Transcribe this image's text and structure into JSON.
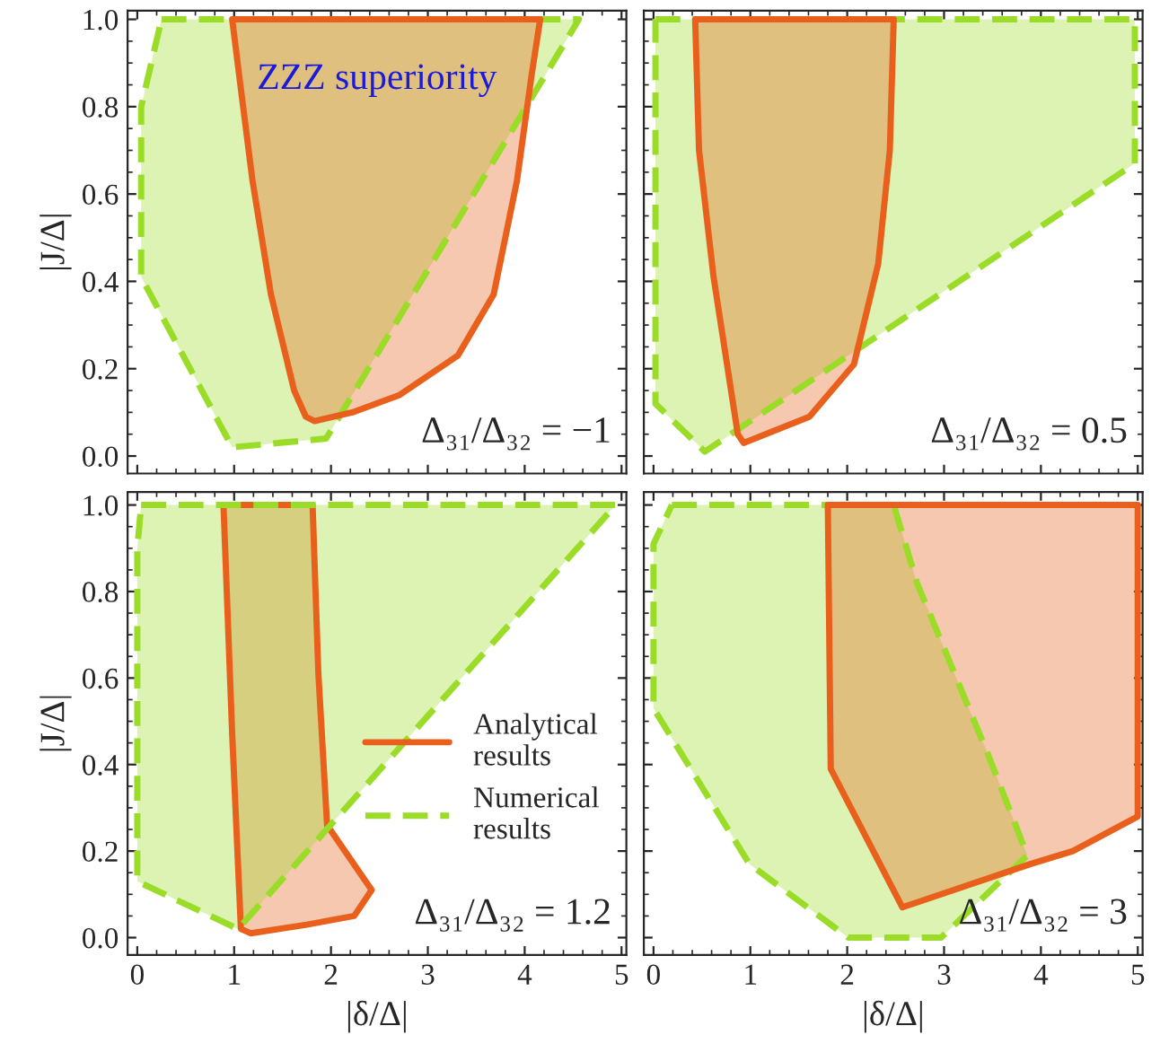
{
  "chart_data": [
    {
      "type": "area",
      "ylabel": "|J/Δ|",
      "xlim": [
        -0.1,
        5.05
      ],
      "ylim": [
        -0.04,
        1.02
      ],
      "xticks": [
        {
          "value": 0,
          "label": null
        },
        {
          "value": 1,
          "label": null
        },
        {
          "value": 2,
          "label": null
        },
        {
          "value": 3,
          "label": null
        },
        {
          "value": 4,
          "label": null
        },
        {
          "value": 5,
          "label": null
        }
      ],
      "yticks": [
        {
          "value": 0,
          "label": "0.0"
        },
        {
          "value": 0.2,
          "label": "0.2"
        },
        {
          "value": 0.4,
          "label": "0.4"
        },
        {
          "value": 0.6,
          "label": "0.6"
        },
        {
          "value": 0.8,
          "label": "0.8"
        },
        {
          "value": 1,
          "label": "1.0"
        }
      ],
      "tick_labels": "y",
      "annotations": [
        "ZZZ superiority",
        "Δ₃₁/Δ₃₂ = −1"
      ],
      "series": [
        {
          "color": "#9bdc28",
          "line_style": "dashed",
          "x": [
            0.25,
            4.56,
            1.95,
            0.98,
            0.04,
            0.04,
            0.25
          ],
          "values": [
            1.0,
            1.0,
            0.04,
            0.02,
            0.41,
            0.8,
            1.0
          ]
        },
        {
          "color": "#e8601c",
          "line_style": "solid",
          "x": [
            0.98,
            4.16,
            4.07,
            3.92,
            3.68,
            3.31,
            2.71,
            2.22,
            1.83,
            1.74,
            1.62,
            1.38,
            1.19,
            1.07,
            0.98
          ],
          "values": [
            1.0,
            1.0,
            0.87,
            0.63,
            0.37,
            0.23,
            0.14,
            0.1,
            0.08,
            0.09,
            0.15,
            0.37,
            0.63,
            0.84,
            1.0
          ]
        }
      ]
    },
    {
      "type": "area",
      "xlim": [
        -0.1,
        5.05
      ],
      "ylim": [
        -0.04,
        1.02
      ],
      "xticks": [
        {
          "value": 0,
          "label": null
        },
        {
          "value": 1,
          "label": null
        },
        {
          "value": 2,
          "label": null
        },
        {
          "value": 3,
          "label": null
        },
        {
          "value": 4,
          "label": null
        },
        {
          "value": 5,
          "label": null
        }
      ],
      "yticks": [
        {
          "value": 0,
          "label": null
        },
        {
          "value": 0.2,
          "label": null
        },
        {
          "value": 0.4,
          "label": null
        },
        {
          "value": 0.6,
          "label": null
        },
        {
          "value": 0.8,
          "label": null
        },
        {
          "value": 1,
          "label": null
        }
      ],
      "tick_labels": false,
      "annotations": [
        "Δ₃₁/Δ₃₂ = 0.5"
      ],
      "series": [
        {
          "color": "#9bdc28",
          "line_style": "dashed",
          "x": [
            0.02,
            4.97,
            4.97,
            0.53,
            0.02,
            0.02
          ],
          "values": [
            1.0,
            1.0,
            0.67,
            0.01,
            0.12,
            1.0
          ]
        },
        {
          "color": "#e8601c",
          "line_style": "solid",
          "x": [
            0.43,
            2.48,
            2.44,
            2.32,
            2.07,
            1.61,
            0.93,
            0.87,
            0.62,
            0.47,
            0.43
          ],
          "values": [
            1.0,
            1.0,
            0.7,
            0.44,
            0.21,
            0.09,
            0.03,
            0.05,
            0.41,
            0.7,
            1.0
          ]
        }
      ]
    },
    {
      "type": "area",
      "xlabel": "|δ/Δ|",
      "ylabel": "|J/Δ|",
      "xlim": [
        -0.1,
        5.05
      ],
      "ylim": [
        -0.04,
        1.03
      ],
      "xticks": [
        0,
        1,
        2,
        3,
        4,
        5
      ],
      "yticks": [
        {
          "value": 0,
          "label": "0.0"
        },
        {
          "value": 0.2,
          "label": "0.2"
        },
        {
          "value": 0.4,
          "label": "0.4"
        },
        {
          "value": 0.6,
          "label": "0.6"
        },
        {
          "value": 0.8,
          "label": "0.8"
        },
        {
          "value": 1,
          "label": "1.0"
        }
      ],
      "legend": "right",
      "annotations": [
        "Δ₃₁/Δ₃₂ = 1.2"
      ],
      "series": [
        {
          "name": "Analytical\nresults",
          "color": "#e8601c",
          "line_style": "solid",
          "x": [
            0.89,
            1.81,
            1.87,
            1.96,
            2.42,
            2.24,
            1.75,
            1.17,
            1.07,
            0.98,
            0.89
          ],
          "values": [
            1.0,
            1.0,
            0.61,
            0.26,
            0.11,
            0.05,
            0.03,
            0.01,
            0.02,
            0.47,
            1.0
          ]
        },
        {
          "name": "Numerical\nresults",
          "color": "#9bdc28",
          "line_style": "dashed",
          "x": [
            0.04,
            4.94,
            1.04,
            0.0,
            0.0,
            0.04
          ],
          "values": [
            1.0,
            1.0,
            0.02,
            0.13,
            0.9,
            1.0
          ]
        }
      ]
    },
    {
      "type": "area",
      "xlabel": "|δ/Δ|",
      "xlim": [
        -0.1,
        5.05
      ],
      "ylim": [
        -0.04,
        1.03
      ],
      "xticks": [
        0,
        1,
        2,
        3,
        4,
        5
      ],
      "yticks": [
        {
          "value": 0,
          "label": null
        },
        {
          "value": 0.2,
          "label": null
        },
        {
          "value": 0.4,
          "label": null
        },
        {
          "value": 0.6,
          "label": null
        },
        {
          "value": 0.8,
          "label": null
        },
        {
          "value": 1,
          "label": null
        }
      ],
      "tick_labels": "x",
      "annotations": [
        "Δ₃₁/Δ₃₂ = 3"
      ],
      "series": [
        {
          "color": "#9bdc28",
          "line_style": "dashed",
          "x": [
            0.19,
            2.48,
            2.72,
            3.46,
            3.86,
            2.97,
            2.01,
            0.99,
            0.0,
            0.0,
            0.19
          ],
          "values": [
            1.0,
            1.0,
            0.82,
            0.42,
            0.19,
            0.0,
            0.0,
            0.17,
            0.53,
            0.91,
            1.0
          ]
        },
        {
          "color": "#e8601c",
          "line_style": "solid",
          "x": [
            1.8,
            5.0,
            5.0,
            4.33,
            3.89,
            2.57,
            1.83,
            1.8
          ],
          "values": [
            1.0,
            1.0,
            0.28,
            0.2,
            0.17,
            0.07,
            0.39,
            1.0
          ]
        }
      ]
    }
  ]
}
